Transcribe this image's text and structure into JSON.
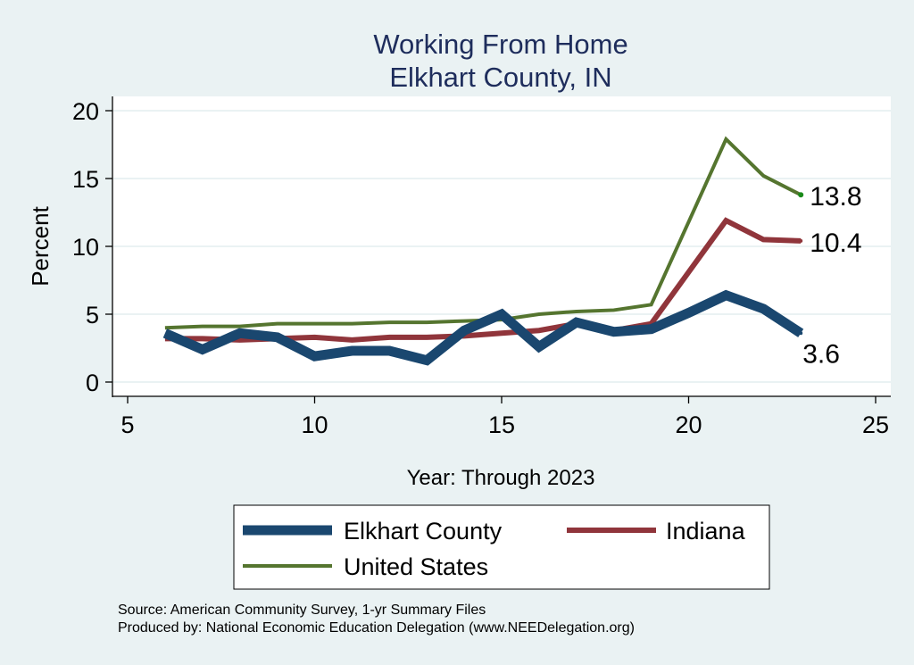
{
  "chart_data": {
    "type": "line",
    "title": "Working From Home",
    "subtitle": "Elkhart County, IN",
    "xlabel": "Year: Through 2023",
    "ylabel": "Percent",
    "xlim": [
      5,
      25
    ],
    "ylim": [
      0,
      20
    ],
    "xticks": [
      5,
      10,
      15,
      20,
      25
    ],
    "yticks": [
      0,
      5,
      10,
      15,
      20
    ],
    "grid": true,
    "legend_position": "bottom",
    "x": [
      6,
      7,
      8,
      9,
      10,
      11,
      12,
      13,
      14,
      15,
      16,
      17,
      18,
      19,
      20,
      21,
      22,
      23
    ],
    "series": [
      {
        "name": "Elkhart County",
        "color": "#1a476f",
        "values": [
          3.6,
          2.4,
          3.6,
          3.3,
          1.9,
          2.3,
          2.3,
          1.6,
          3.8,
          5.0,
          2.6,
          4.4,
          3.7,
          3.9,
          5.1,
          6.4,
          5.4,
          3.6
        ],
        "end_label": "3.6"
      },
      {
        "name": "Indiana",
        "color": "#90353b",
        "values": [
          3.2,
          3.2,
          3.1,
          3.2,
          3.3,
          3.1,
          3.3,
          3.3,
          3.4,
          3.6,
          3.8,
          4.3,
          3.8,
          4.3,
          8.1,
          11.9,
          10.5,
          10.4
        ],
        "end_label": "10.4"
      },
      {
        "name": "United States",
        "color": "#55752f",
        "values": [
          4.0,
          4.1,
          4.1,
          4.3,
          4.3,
          4.3,
          4.4,
          4.4,
          4.5,
          4.6,
          5.0,
          5.2,
          5.3,
          5.7,
          11.8,
          17.9,
          15.2,
          13.8
        ],
        "end_label": "13.8"
      }
    ]
  },
  "notes": {
    "source": "Source: American Community Survey, 1-yr Summary Files",
    "produced_by": "Produced by: National Economic Education Delegation (www.NEEDelegation.org)"
  }
}
